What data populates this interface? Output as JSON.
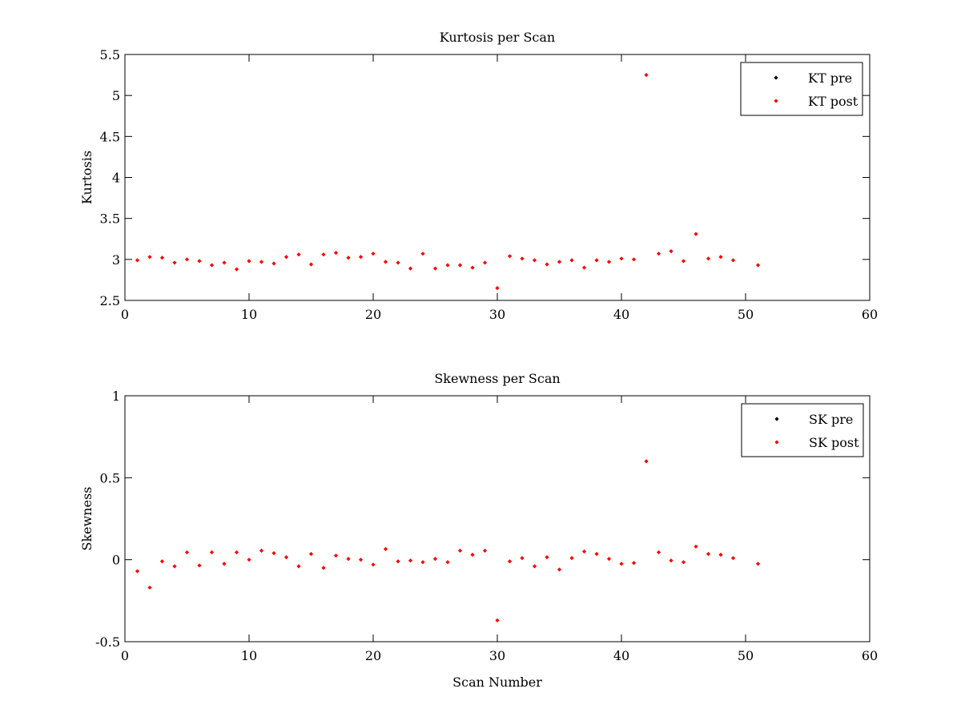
{
  "chart_data": [
    {
      "type": "scatter",
      "title": "Kurtosis per Scan",
      "xlabel": "",
      "ylabel": "Kurtosis",
      "xlim": [
        0,
        60
      ],
      "ylim": [
        2.5,
        5.5
      ],
      "xticks": [
        0,
        10,
        20,
        30,
        40,
        50,
        60
      ],
      "yticks": [
        2.5,
        3,
        3.5,
        4,
        4.5,
        5,
        5.5
      ],
      "xtick_labels": [
        "0",
        "10",
        "20",
        "30",
        "40",
        "50",
        "60"
      ],
      "ytick_labels": [
        "2.5",
        "3",
        "3.5",
        "4",
        "4.5",
        "5",
        "5.5"
      ],
      "grid": false,
      "legend_position": "top-right",
      "series": [
        {
          "name": "KT pre",
          "color": "#000000",
          "x": [],
          "y": []
        },
        {
          "name": "KT post",
          "color": "#ff0000",
          "x": [
            1,
            2,
            3,
            4,
            5,
            6,
            7,
            8,
            9,
            10,
            11,
            12,
            13,
            14,
            15,
            16,
            17,
            18,
            19,
            20,
            21,
            22,
            23,
            24,
            25,
            26,
            27,
            28,
            29,
            30,
            31,
            32,
            33,
            34,
            35,
            36,
            37,
            38,
            39,
            40,
            41,
            42,
            43,
            44,
            45,
            46,
            47,
            48,
            49,
            51
          ],
          "y": [
            2.99,
            3.03,
            3.02,
            2.96,
            3.0,
            2.98,
            2.93,
            2.96,
            2.88,
            2.98,
            2.97,
            2.95,
            3.03,
            3.06,
            2.94,
            3.06,
            3.08,
            3.02,
            3.03,
            3.07,
            2.97,
            2.96,
            2.89,
            3.07,
            2.89,
            2.93,
            2.93,
            2.9,
            2.96,
            2.65,
            3.04,
            3.01,
            2.99,
            2.94,
            2.97,
            2.99,
            2.9,
            2.99,
            2.97,
            3.01,
            3.0,
            5.25,
            3.07,
            3.1,
            2.98,
            3.31,
            3.01,
            3.03,
            2.99,
            2.93
          ]
        }
      ]
    },
    {
      "type": "scatter",
      "title": "Skewness per Scan",
      "xlabel": "Scan Number",
      "ylabel": "Skewness",
      "xlim": [
        0,
        60
      ],
      "ylim": [
        -0.5,
        1
      ],
      "xticks": [
        0,
        10,
        20,
        30,
        40,
        50,
        60
      ],
      "yticks": [
        -0.5,
        0,
        0.5,
        1
      ],
      "xtick_labels": [
        "0",
        "10",
        "20",
        "30",
        "40",
        "50",
        "60"
      ],
      "ytick_labels": [
        "-0.5",
        "0",
        "0.5",
        "1"
      ],
      "grid": false,
      "legend_position": "top-right",
      "series": [
        {
          "name": "SK pre",
          "color": "#000000",
          "x": [],
          "y": []
        },
        {
          "name": "SK post",
          "color": "#ff0000",
          "x": [
            1,
            2,
            3,
            4,
            5,
            6,
            7,
            8,
            9,
            10,
            11,
            12,
            13,
            14,
            15,
            16,
            17,
            18,
            19,
            20,
            21,
            22,
            23,
            24,
            25,
            26,
            27,
            28,
            29,
            30,
            31,
            32,
            33,
            34,
            35,
            36,
            37,
            38,
            39,
            40,
            41,
            42,
            43,
            44,
            45,
            46,
            47,
            48,
            49,
            51
          ],
          "y": [
            -0.07,
            -0.17,
            -0.01,
            -0.04,
            0.045,
            -0.035,
            0.045,
            -0.025,
            0.045,
            0.0,
            0.055,
            0.04,
            0.015,
            -0.04,
            0.035,
            -0.05,
            0.025,
            0.005,
            0.0,
            -0.03,
            0.065,
            -0.01,
            -0.005,
            -0.015,
            0.005,
            -0.015,
            0.055,
            0.03,
            0.055,
            -0.37,
            -0.01,
            0.01,
            -0.04,
            0.015,
            -0.06,
            0.01,
            0.05,
            0.035,
            0.005,
            -0.025,
            -0.02,
            0.6,
            0.045,
            -0.005,
            -0.015,
            0.08,
            0.035,
            0.03,
            0.01,
            -0.025
          ]
        }
      ]
    }
  ]
}
